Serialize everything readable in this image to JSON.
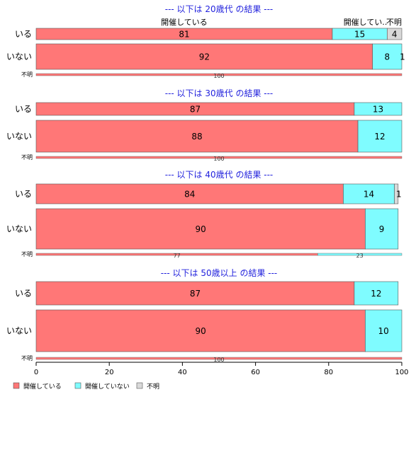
{
  "chart_data": {
    "type": "bar",
    "orientation": "horizontal",
    "stacked": true,
    "xlim": [
      0,
      100
    ],
    "xticks": [
      "0",
      "20",
      "40",
      "60",
      "80",
      "100"
    ],
    "colors": {
      "開催している": "#ff7777",
      "開催していない": "#7ffcff",
      "不明": "#d9d9d9"
    },
    "segment_order": [
      "開催している",
      "開催していない",
      "不明"
    ],
    "top_labels": [
      "開催している",
      "開催してい..",
      "不明"
    ],
    "legend": {
      "position": "bottom-left",
      "items": [
        "開催している",
        "開催していない",
        "不明"
      ]
    },
    "panels": [
      {
        "title": "--- 以下は 20歳代 の結果 ---",
        "rows": [
          {
            "label": "いる",
            "values": [
              81,
              15,
              4
            ]
          },
          {
            "label": "いない",
            "values": [
              92,
              8,
              1
            ]
          },
          {
            "label": "不明",
            "values": [
              100,
              0,
              0
            ]
          }
        ]
      },
      {
        "title": "--- 以下は 30歳代 の結果 ---",
        "rows": [
          {
            "label": "いる",
            "values": [
              87,
              13,
              0
            ]
          },
          {
            "label": "いない",
            "values": [
              88,
              12,
              0
            ]
          },
          {
            "label": "不明",
            "values": [
              100,
              0,
              0
            ]
          }
        ]
      },
      {
        "title": "--- 以下は 40歳代 の結果 ---",
        "rows": [
          {
            "label": "いる",
            "values": [
              84,
              14,
              1
            ]
          },
          {
            "label": "いない",
            "values": [
              90,
              9,
              0
            ]
          },
          {
            "label": "不明",
            "values": [
              77,
              23,
              0
            ]
          }
        ]
      },
      {
        "title": "--- 以下は 50歳以上 の結果 ---",
        "rows": [
          {
            "label": "いる",
            "values": [
              87,
              12,
              0
            ]
          },
          {
            "label": "いない",
            "values": [
              90,
              10,
              0
            ]
          },
          {
            "label": "不明",
            "values": [
              100,
              0,
              0
            ]
          }
        ]
      }
    ]
  }
}
